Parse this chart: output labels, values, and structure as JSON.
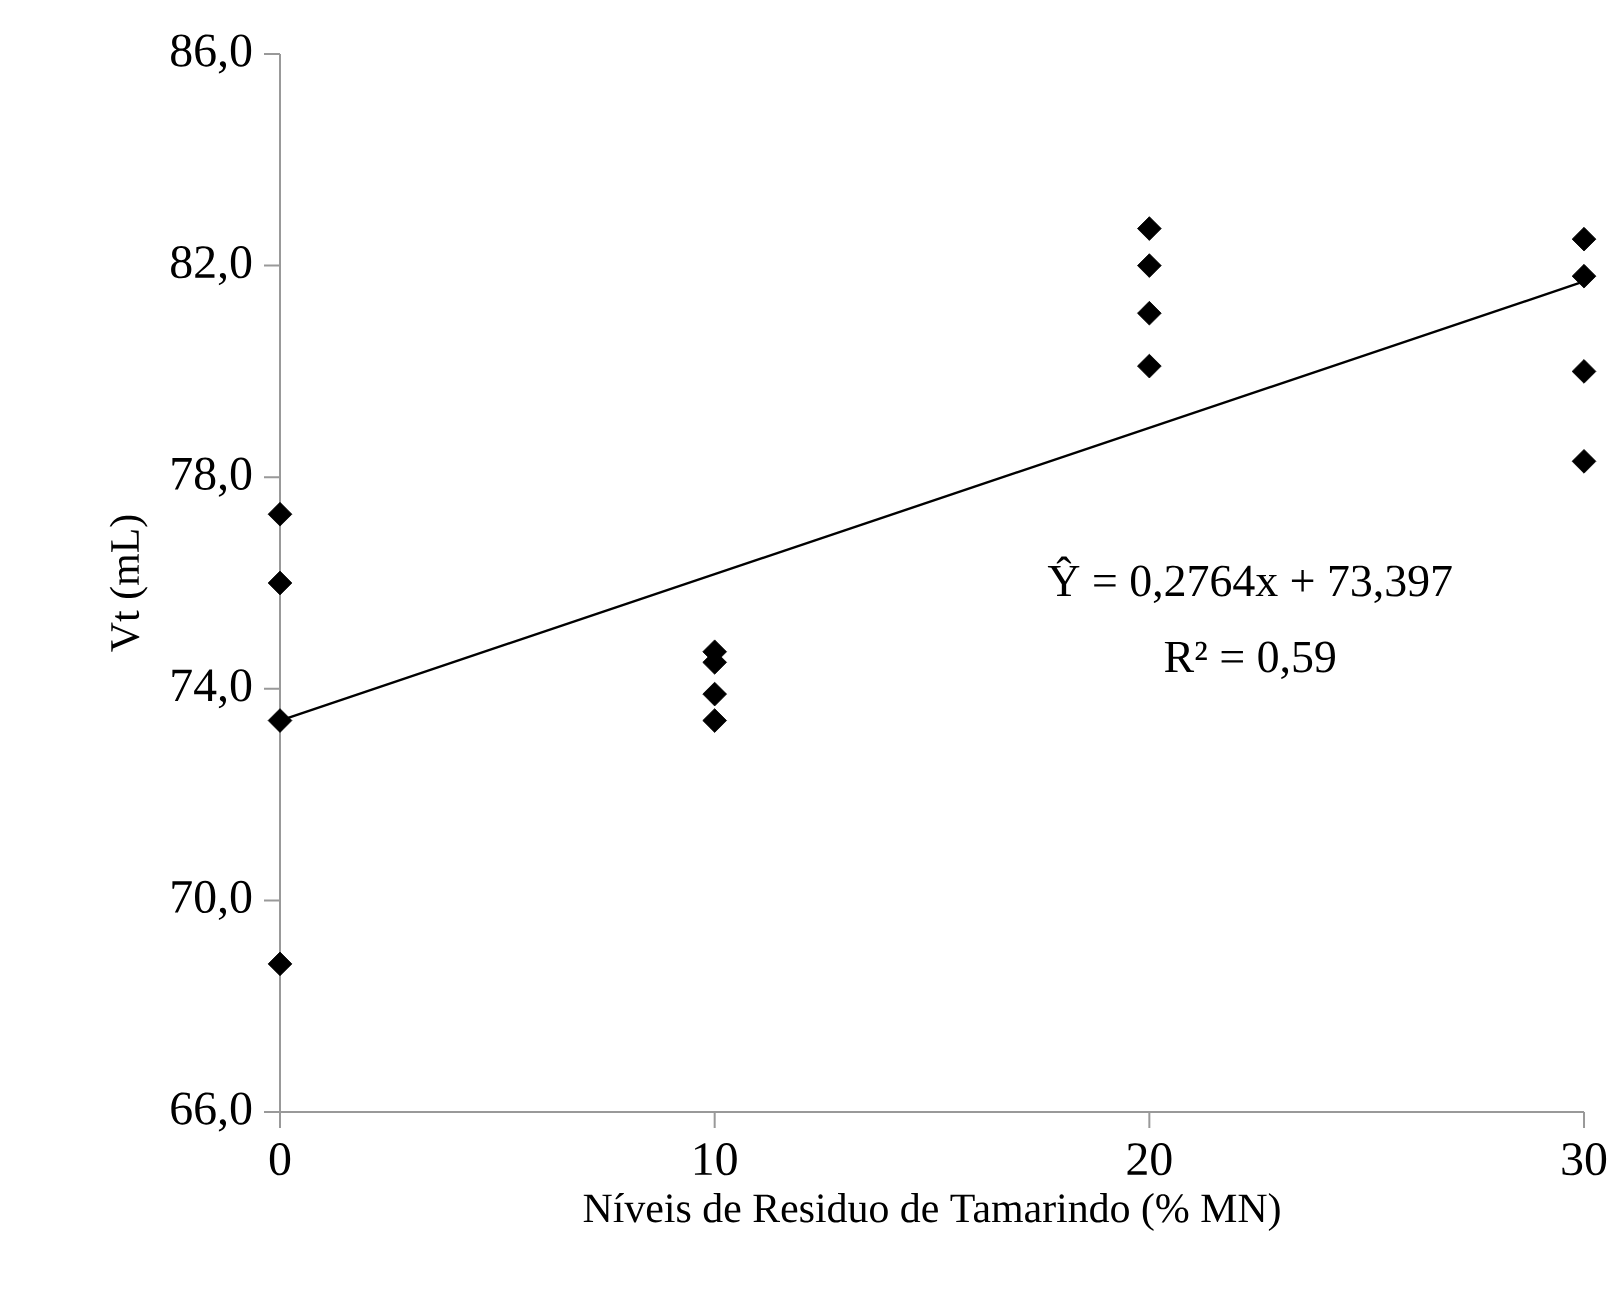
{
  "chart_data": {
    "type": "scatter",
    "xlabel": "Níveis de Residuo de Tamarindo (% MN)",
    "ylabel": "Vt (mL)",
    "xlim": [
      0,
      30
    ],
    "xticks": [
      0,
      10,
      20,
      30
    ],
    "ylim": [
      66,
      86
    ],
    "yticks": [
      {
        "value": 66,
        "label": "66,0"
      },
      {
        "value": 70,
        "label": "70,0"
      },
      {
        "value": 74,
        "label": "74,0"
      },
      {
        "value": 78,
        "label": "78,0"
      },
      {
        "value": 82,
        "label": "82,0"
      },
      {
        "value": 86,
        "label": "86,0"
      }
    ],
    "grid": false,
    "series": [
      {
        "color": "#000000",
        "marker": "diamond",
        "x": [
          0,
          0,
          0,
          0,
          10,
          10,
          10,
          10,
          20,
          20,
          20,
          20,
          30,
          30,
          30,
          30
        ],
        "values": [
          77.3,
          76.0,
          73.4,
          68.8,
          74.7,
          74.5,
          73.9,
          73.4,
          82.7,
          82.0,
          81.1,
          80.1,
          82.5,
          81.8,
          80.0,
          78.3
        ]
      },
      {
        "type": "line",
        "color": "#000000",
        "marker": "none",
        "line_style": "solid",
        "x": [
          0,
          30
        ],
        "values": [
          73.4,
          81.7
        ]
      }
    ],
    "annotations": [
      "Ŷ = 0,2764x + 73,397",
      "R² = 0,59"
    ]
  }
}
